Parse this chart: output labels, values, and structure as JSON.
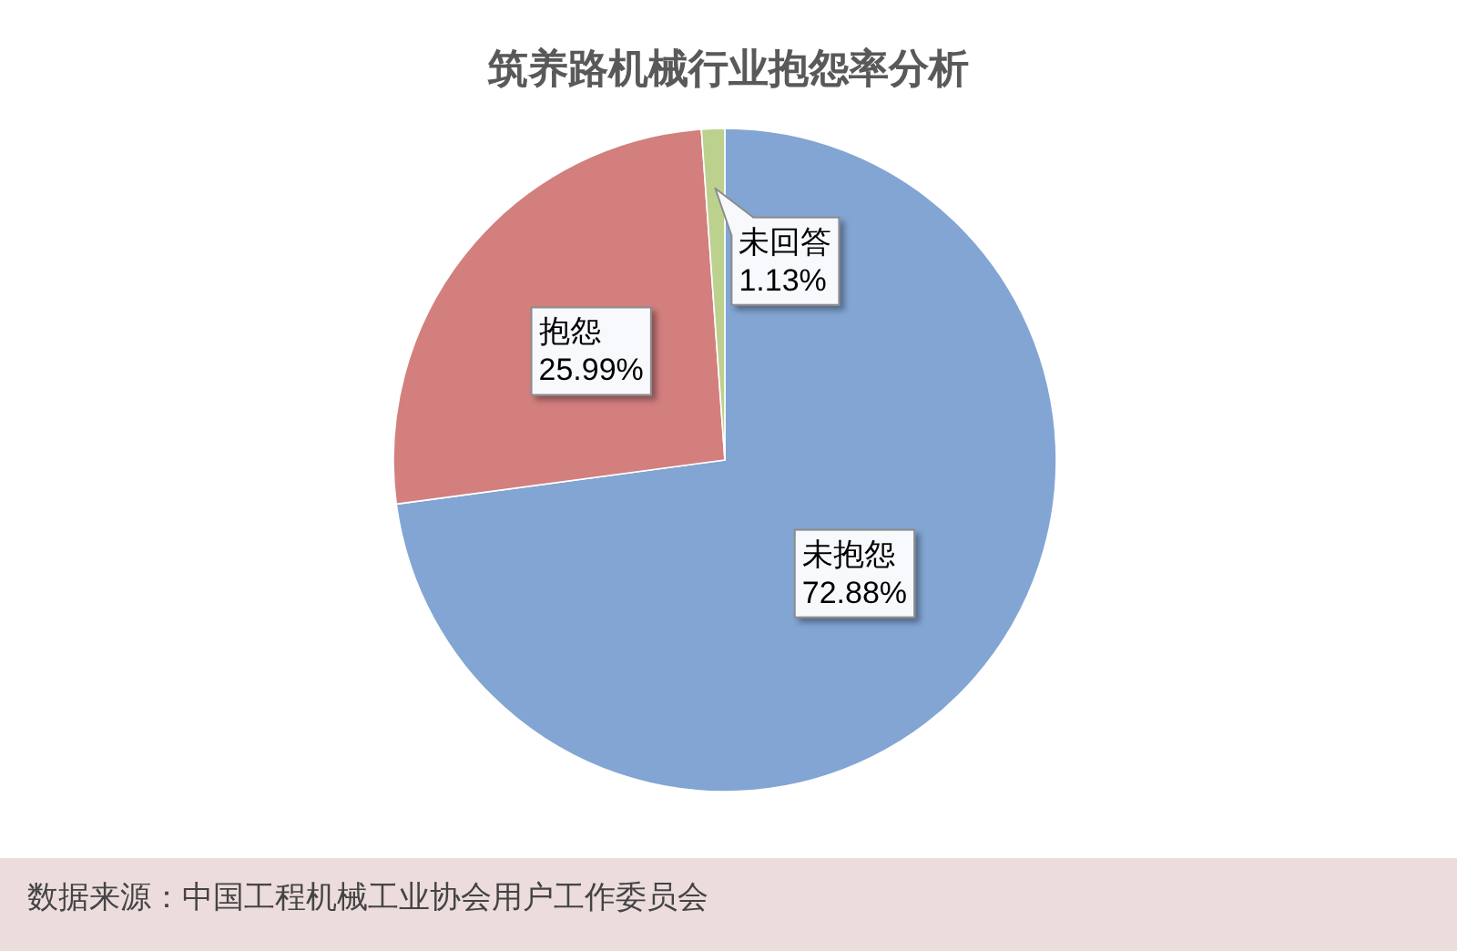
{
  "chart_data": {
    "type": "pie",
    "title": "筑养路机械行业抱怨率分析",
    "categories": [
      "未抱怨",
      "抱怨",
      "未回答"
    ],
    "values": [
      72.88,
      25.99,
      1.13
    ],
    "value_labels": [
      "72.88%",
      "25.99%",
      "1.13%"
    ],
    "colors": [
      "#82a5d3",
      "#d27f7e",
      "#bdd18f"
    ],
    "annotations": [
      "数据来源：中国工程机械工业协会用户工作委员会"
    ]
  }
}
